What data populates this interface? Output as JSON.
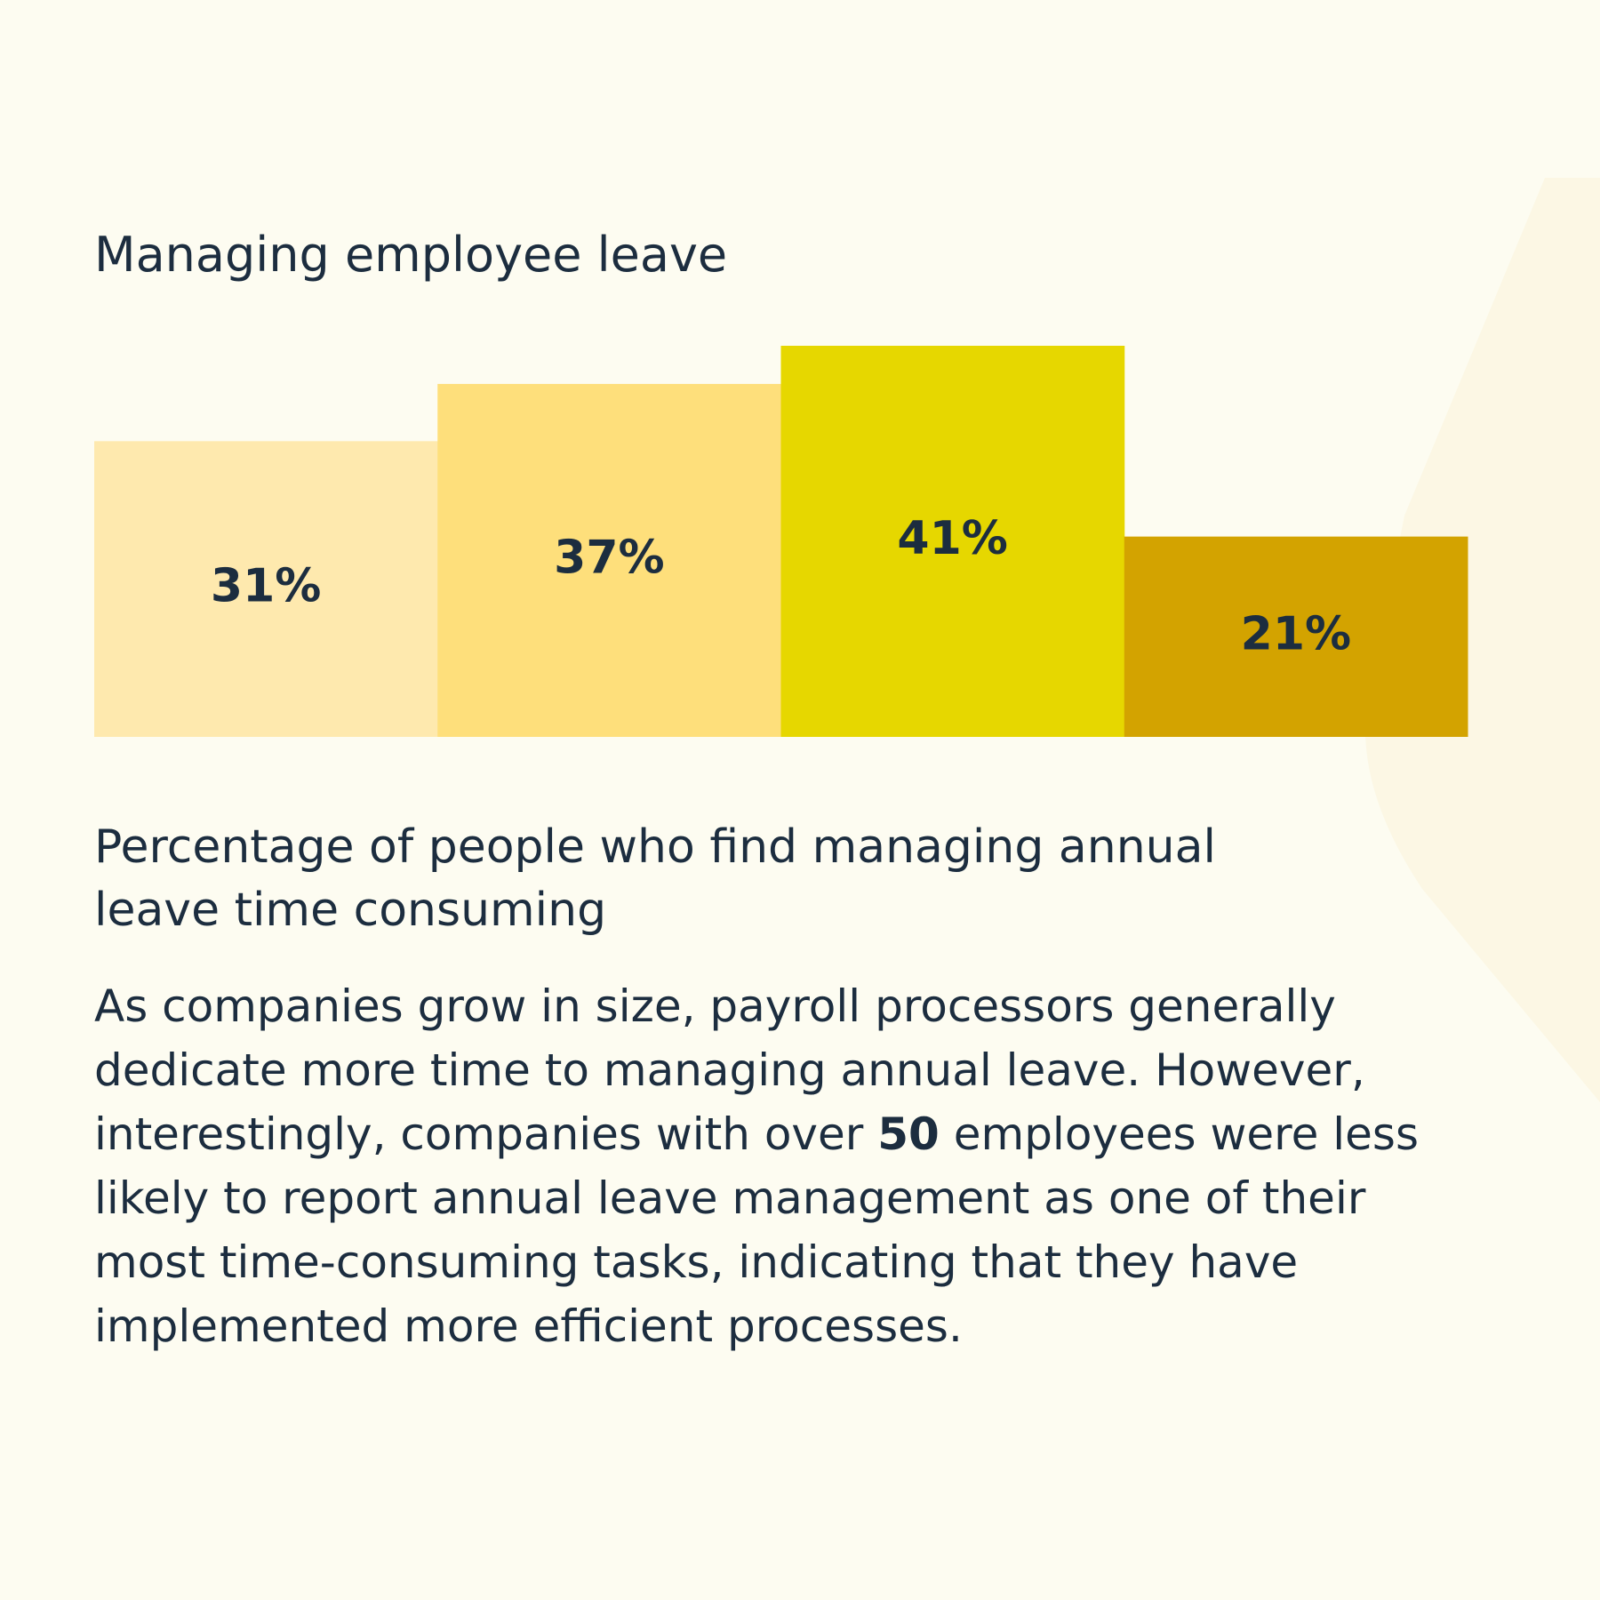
{
  "chart_data": {
    "type": "bar",
    "title": "Managing employee leave",
    "values": [
      31,
      37,
      41,
      21
    ],
    "value_labels": [
      "31%",
      "37%",
      "41%",
      "21%"
    ],
    "colors": [
      "#fee9ae",
      "#fedf7b",
      "#e6d700",
      "#d3a300"
    ],
    "subtitle": "Percentage of people who find managing annual leave time consuming",
    "description": [
      {
        "text": "As companies grow in size, payroll processors generally dedicate more time to managing annual leave. However, interestingly, companies with over "
      },
      {
        "text": "50",
        "bold": true
      },
      {
        "text": " employees were less likely to report annual leave management as one of their most time-consuming tasks, indicating that they have implemented more efficient processes."
      }
    ]
  }
}
